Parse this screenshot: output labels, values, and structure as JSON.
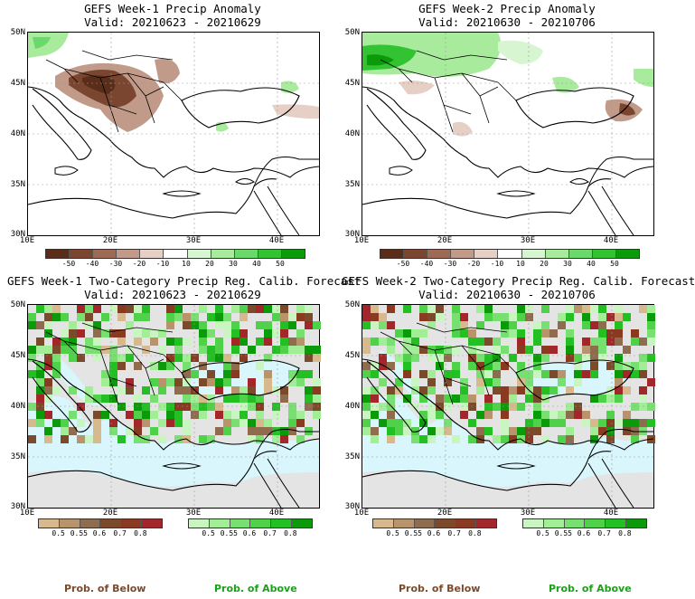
{
  "panels": [
    {
      "title": "GEFS Week-1 Precip Anomaly",
      "valid": "Valid: 20210623 - 20210629"
    },
    {
      "title": "GEFS Week-2 Precip Anomaly",
      "valid": "Valid: 20210630 - 20210706"
    },
    {
      "title": "GEFS Week-1 Two-Category Precip Reg. Calib. Forecast",
      "valid": "Valid: 20210623 - 20210629"
    },
    {
      "title": "GEFS Week-2 Two-Category Precip Reg. Calib. Forecast",
      "valid": "Valid: 20210630 - 20210706"
    }
  ],
  "axes": {
    "lat_labels": [
      "50N",
      "45N",
      "40N",
      "35N",
      "30N"
    ],
    "lon_labels": [
      "10E",
      "20E",
      "30E",
      "40E"
    ]
  },
  "anomaly_colorbar": {
    "labels": [
      "-50",
      "-40",
      "-30",
      "-20",
      "-10",
      "10",
      "20",
      "30",
      "40",
      "50"
    ],
    "colors": [
      "#5a2d1a",
      "#7a4630",
      "#9c6a55",
      "#c19a8a",
      "#e6cfc5",
      "#ffffff",
      "#d6f5d0",
      "#a8eb9c",
      "#6ad86a",
      "#32c232",
      "#0a9a0a"
    ]
  },
  "prob_colorbar_below": {
    "labels": [
      "0.5",
      "0.55",
      "0.6",
      "0.7",
      "0.8"
    ],
    "colors": [
      "#d8b98e",
      "#b8936b",
      "#8f6c4e",
      "#7a4a2a",
      "#8a3a20",
      "#a3262a"
    ]
  },
  "prob_colorbar_above": {
    "labels": [
      "0.5",
      "0.55",
      "0.6",
      "0.7",
      "0.8"
    ],
    "colors": [
      "#c8f5c0",
      "#a2ee96",
      "#78e070",
      "#4fd24a",
      "#22c022",
      "#0a9a0a"
    ]
  },
  "footer": {
    "below_label": "Prob. of Below",
    "above_label": "Prob. of Above",
    "below_color": "#7a4a2a",
    "above_color": "#1aa01a"
  },
  "colors": {
    "land_gray": "#e4e4e4",
    "sea_cyan": "#d8f6fb",
    "grid": "#9a9a9a"
  }
}
